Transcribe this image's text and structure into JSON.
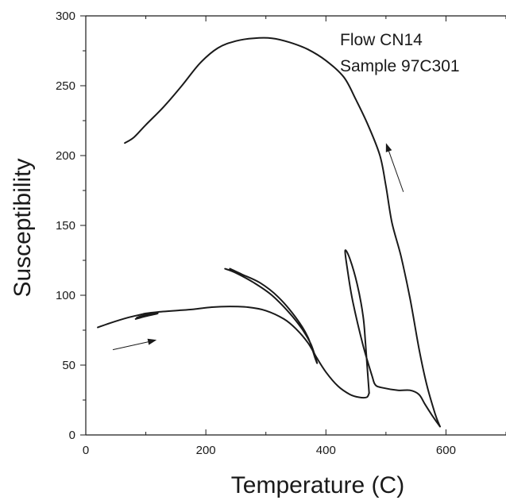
{
  "chart_data": {
    "type": "line",
    "title": "",
    "xlabel": "Temperature (C)",
    "ylabel": "Susceptibility",
    "xlim": [
      0,
      700
    ],
    "ylim": [
      0,
      300
    ],
    "xticks": [
      0,
      200,
      400,
      600
    ],
    "yticks": [
      0,
      50,
      100,
      150,
      200,
      250,
      300
    ],
    "grid": false,
    "annotations": [
      "Flow CN14",
      "Sample 97C301"
    ],
    "series": [
      {
        "values": [
          [
            20,
            77
          ],
          [
            40,
            80
          ],
          [
            70,
            84
          ],
          [
            90,
            86
          ],
          [
            100,
            87
          ],
          [
            120,
            88
          ],
          [
            150,
            89
          ],
          [
            180,
            90
          ],
          [
            210,
            91.5
          ],
          [
            240,
            92
          ],
          [
            270,
            91.5
          ],
          [
            300,
            89
          ],
          [
            330,
            83
          ],
          [
            350,
            76
          ],
          [
            370,
            66
          ],
          [
            385,
            55
          ],
          [
            400,
            45
          ],
          [
            420,
            35
          ],
          [
            440,
            29
          ],
          [
            455,
            27
          ],
          [
            468,
            27
          ],
          [
            472,
            30
          ]
        ]
      },
      {
        "values": [
          [
            83,
            83
          ],
          [
            100,
            85
          ],
          [
            120,
            87
          ],
          [
            100,
            86
          ],
          [
            85,
            84
          ]
        ]
      },
      {
        "values": [
          [
            232,
            119
          ],
          [
            250,
            116
          ],
          [
            280,
            109
          ],
          [
            310,
            100
          ],
          [
            340,
            87
          ],
          [
            360,
            76
          ],
          [
            375,
            65
          ],
          [
            385,
            52
          ],
          [
            382,
            55
          ],
          [
            370,
            70
          ],
          [
            350,
            84
          ],
          [
            320,
            99
          ],
          [
            290,
            109
          ],
          [
            260,
            115
          ],
          [
            240,
            119
          ]
        ]
      },
      {
        "values": [
          [
            472,
            30
          ],
          [
            466,
            65
          ],
          [
            462,
            85
          ],
          [
            452,
            108
          ],
          [
            440,
            126
          ],
          [
            432,
            132
          ],
          [
            436,
            118
          ],
          [
            445,
            95
          ],
          [
            462,
            64
          ],
          [
            477,
            42
          ],
          [
            482,
            36
          ],
          [
            492,
            34
          ],
          [
            520,
            32
          ],
          [
            540,
            32
          ],
          [
            555,
            29
          ],
          [
            565,
            22
          ],
          [
            577,
            14
          ],
          [
            590,
            6
          ]
        ]
      },
      {
        "values": [
          [
            590,
            6
          ],
          [
            582,
            15
          ],
          [
            568,
            36
          ],
          [
            555,
            62
          ],
          [
            540,
            98
          ],
          [
            525,
            128
          ],
          [
            510,
            152
          ],
          [
            500,
            178
          ],
          [
            490,
            200
          ],
          [
            470,
            222
          ],
          [
            450,
            240
          ],
          [
            430,
            256
          ],
          [
            400,
            268
          ],
          [
            370,
            276
          ],
          [
            340,
            281
          ],
          [
            310,
            284
          ],
          [
            280,
            284
          ],
          [
            250,
            282
          ],
          [
            220,
            277
          ],
          [
            190,
            266
          ],
          [
            160,
            250
          ],
          [
            130,
            235
          ],
          [
            100,
            222
          ],
          [
            80,
            213
          ],
          [
            65,
            209
          ]
        ]
      }
    ],
    "arrows": [
      {
        "from": [
          45,
          61
        ],
        "to": [
          118,
          68
        ]
      },
      {
        "from": [
          529,
          174
        ],
        "to": [
          500,
          209
        ]
      }
    ]
  }
}
